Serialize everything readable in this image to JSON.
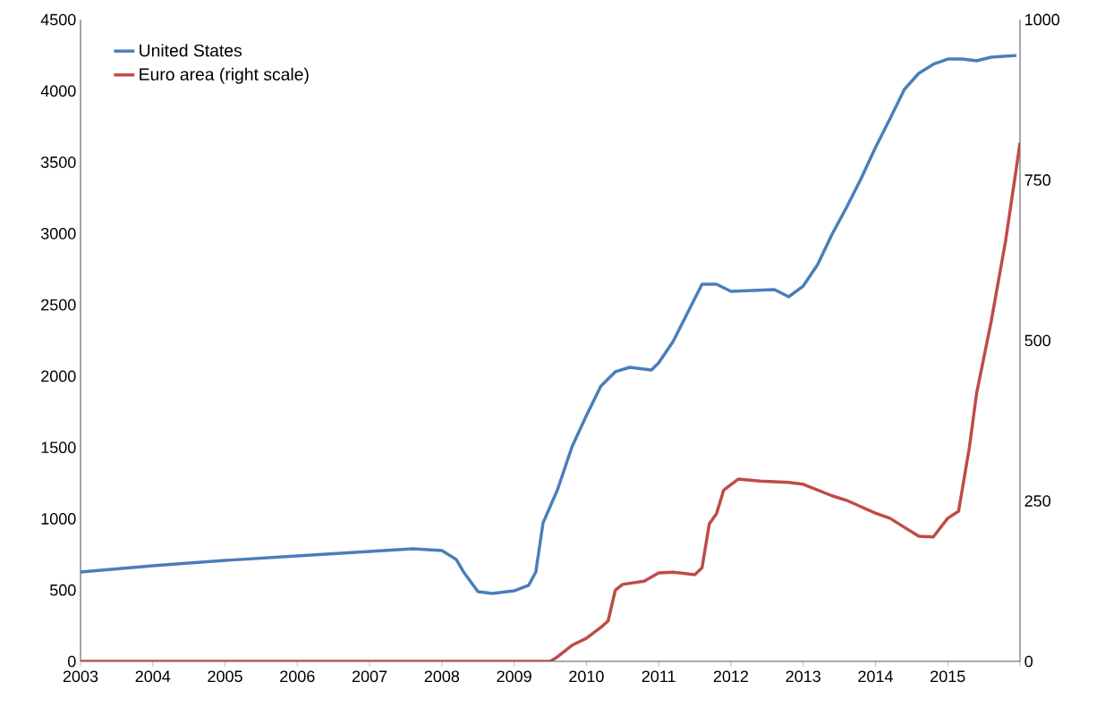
{
  "chart_data": {
    "type": "line",
    "xlim": [
      2003,
      2016
    ],
    "xticks": [
      2003,
      2004,
      2005,
      2006,
      2007,
      2008,
      2009,
      2010,
      2011,
      2012,
      2013,
      2014,
      2015,
      {
        "value": 2016,
        "label": null
      }
    ],
    "ylim": [
      0,
      4500
    ],
    "yticks": [
      0,
      500,
      1000,
      1500,
      2000,
      2500,
      3000,
      3500,
      4000,
      4500
    ],
    "y2lim": [
      0,
      1000
    ],
    "y2ticks": [
      0,
      250,
      500,
      750,
      1000
    ],
    "legend": "top left",
    "line_style": "solid",
    "series": [
      {
        "name": "United States",
        "color": "#4a7ebb",
        "axis": "y",
        "x": [
          2003.0,
          2004.0,
          2005.0,
          2006.0,
          2007.0,
          2007.6,
          2008.0,
          2008.2,
          2008.3,
          2008.5,
          2008.7,
          2009.0,
          2009.2,
          2009.3,
          2009.4,
          2009.6,
          2009.8,
          2010.0,
          2010.2,
          2010.4,
          2010.6,
          2010.8,
          2010.9,
          2011.0,
          2011.2,
          2011.4,
          2011.6,
          2011.8,
          2012.0,
          2012.3,
          2012.6,
          2012.8,
          2013.0,
          2013.2,
          2013.4,
          2013.6,
          2013.8,
          2014.0,
          2014.2,
          2014.4,
          2014.6,
          2014.8,
          2015.0,
          2015.2,
          2015.4,
          2015.6,
          2015.95
        ],
        "values": [
          627,
          670,
          708,
          740,
          771,
          790,
          777,
          714,
          627,
          489,
          476,
          495,
          533,
          627,
          971,
          1203,
          1504,
          1723,
          1930,
          2031,
          2062,
          2049,
          2043,
          2093,
          2244,
          2444,
          2645,
          2645,
          2595,
          2601,
          2607,
          2557,
          2632,
          2783,
          2996,
          3184,
          3384,
          3604,
          3804,
          4011,
          4124,
          4187,
          4224,
          4224,
          4212,
          4237,
          4249
        ]
      },
      {
        "name": "Euro area (right scale)",
        "color": "#be4b48",
        "axis": "y2",
        "x": [
          2003.0,
          2009.5,
          2009.6,
          2009.8,
          2010.0,
          2010.2,
          2010.3,
          2010.4,
          2010.5,
          2010.8,
          2011.0,
          2011.2,
          2011.5,
          2011.6,
          2011.7,
          2011.8,
          2011.9,
          2012.1,
          2012.4,
          2012.8,
          2013.0,
          2013.2,
          2013.4,
          2013.6,
          2013.8,
          2014.0,
          2014.2,
          2014.4,
          2014.6,
          2014.8,
          2015.0,
          2015.15,
          2015.3,
          2015.4,
          2015.6,
          2015.8,
          2015.95,
          2016.0
        ],
        "values": [
          0,
          0,
          7,
          25,
          36,
          53,
          63,
          111,
          120,
          125,
          138,
          139,
          135,
          146,
          214,
          230,
          267,
          284,
          281,
          279,
          276,
          267,
          258,
          251,
          241,
          231,
          223,
          209,
          195,
          194,
          223,
          234,
          334,
          418,
          529,
          655,
          769,
          808
        ]
      }
    ]
  }
}
